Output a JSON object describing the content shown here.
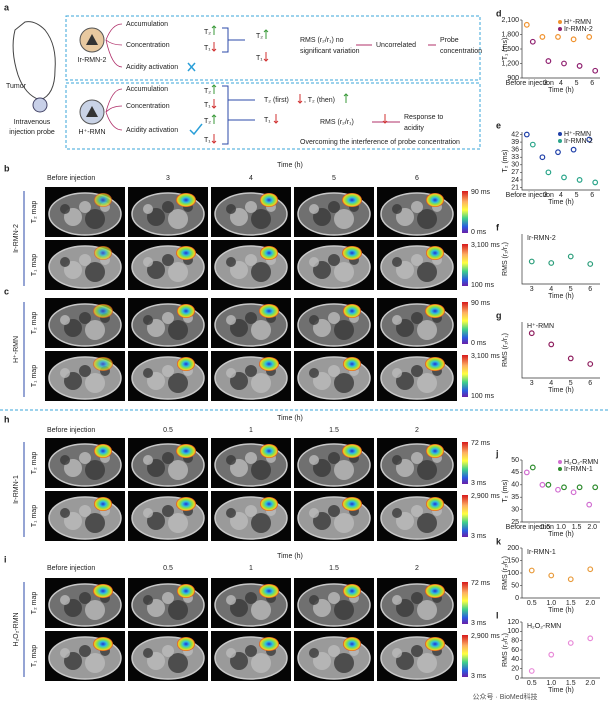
{
  "panel_a": {
    "label": "a",
    "mouse": [
      "Tumor",
      "Intravenous",
      "injection probe"
    ],
    "rows": [
      {
        "probe": "Ir-RMN-2",
        "texts": [
          "Accumulation",
          "Concentration",
          "Acidity activation",
          "T₂",
          "T₁",
          "T₂",
          "T₁",
          "RMS (r₂/r₁) no",
          "significant variation",
          "Uncorrelated",
          "Probe",
          "concentration"
        ]
      },
      {
        "probe": "H⁺-RMN",
        "texts": [
          "Accumulation",
          "Concentration",
          "Acidity activation",
          "T₂",
          "T₁",
          "T₂",
          "T₁",
          "T₂ (first)",
          ", T₂ (then)",
          "T₁",
          "RMS (r₂/r₁)",
          "Response to",
          "acidity",
          "Overcoming the interference of probe concentration"
        ]
      }
    ]
  },
  "image_panels": [
    {
      "label": "b",
      "time_title": "Time (h)",
      "columns": [
        "Before injection",
        "3",
        "4",
        "5",
        "6"
      ],
      "group": "Ir-RMN-2",
      "rows": [
        "T₂ map",
        "T₁ map"
      ],
      "colorbars": [
        [
          "90 ms",
          "0 ms"
        ],
        [
          "3,100 ms",
          "100 ms"
        ]
      ]
    },
    {
      "label": "c",
      "group": "H⁺-RMN",
      "rows": [
        "T₂ map",
        "T₁ map"
      ],
      "colorbars": [
        [
          "90 ms",
          "0 ms"
        ],
        [
          "3,100 ms",
          "100 ms"
        ]
      ]
    },
    {
      "label": "h",
      "time_title": "Time (h)",
      "columns": [
        "Before injection",
        "0.5",
        "1",
        "1.5",
        "2"
      ],
      "group": "Ir-RMN-1",
      "rows": [
        "T₂ map",
        "T₁ map"
      ],
      "colorbars": [
        [
          "72 ms",
          "3 ms"
        ],
        [
          "2,900 ms",
          "3 ms"
        ]
      ]
    },
    {
      "label": "i",
      "time_title": "Time (h)",
      "columns": [
        "Before injection",
        "0.5",
        "1",
        "1.5",
        "2"
      ],
      "group": "H₂O₂-RMN",
      "rows": [
        "T₂ map",
        "T₁ map"
      ],
      "colorbars": [
        [
          "72 ms",
          "3 ms"
        ],
        [
          "2,900 ms",
          "3 ms"
        ]
      ]
    }
  ],
  "chart_data": [
    {
      "panel": "d",
      "type": "dot",
      "xlabel": "Time (h)",
      "ylabel": "T₁ (ms)",
      "categories": [
        "Before injection",
        "3",
        "4",
        "5",
        "6"
      ],
      "series": [
        {
          "name": "H⁺-RMN",
          "color": "#f0922e",
          "values": [
            2000,
            1750,
            1750,
            1700,
            1750
          ]
        },
        {
          "name": "Ir-RMN-2",
          "color": "#8e1e6e",
          "values": [
            1650,
            1250,
            1200,
            1150,
            1050
          ]
        }
      ],
      "ylim": [
        900,
        2100
      ],
      "yticks": [
        900,
        {
          "value": 1200,
          "label": "1,200"
        },
        {
          "value": 1500,
          "label": "1,500"
        },
        {
          "value": 1800,
          "label": "1,800"
        },
        {
          "value": 2100,
          "label": "2,100"
        }
      ]
    },
    {
      "panel": "e",
      "type": "dot",
      "xlabel": "Time (h)",
      "ylabel": "T₂ (ms)",
      "categories": [
        "Before injection",
        "3",
        "4",
        "5",
        "6"
      ],
      "series": [
        {
          "name": "H⁺-RMN",
          "color": "#1f3fa8",
          "values": [
            42,
            33,
            35,
            36,
            40
          ]
        },
        {
          "name": "Ir-RMN-2",
          "color": "#2aa58a",
          "values": [
            38,
            27,
            25,
            24,
            23
          ]
        }
      ],
      "ylim": [
        20,
        43
      ],
      "yticks": [
        21,
        24,
        27,
        30,
        33,
        36,
        39,
        42
      ]
    },
    {
      "panel": "f",
      "type": "dot",
      "title": "Ir-RMN-2",
      "xlabel": "Time (h)",
      "ylabel": "RMS (r₂/r₁)",
      "categories": [
        "3",
        "4",
        "5",
        "6"
      ],
      "color": "#2a9d7a",
      "values": [
        0.45,
        0.42,
        0.55,
        0.4
      ],
      "ylim": [
        0,
        1
      ]
    },
    {
      "panel": "g",
      "type": "dot",
      "title": "H⁺-RMN",
      "xlabel": "Time (h)",
      "ylabel": "RMS (r₂/r₁)",
      "categories": [
        "3",
        "4",
        "5",
        "6"
      ],
      "color": "#8e1e5e",
      "values": [
        0.8,
        0.6,
        0.35,
        0.25
      ],
      "ylim": [
        0,
        1
      ]
    },
    {
      "panel": "j",
      "type": "dot",
      "xlabel": "Time (h)",
      "ylabel": "T₂ (ms)",
      "categories": [
        "Before injection",
        "0.5",
        "1.0",
        "1.5",
        "2.0"
      ],
      "series": [
        {
          "name": "H₂O₂-RMN",
          "color": "#d16ed1",
          "values": [
            45,
            40,
            38,
            37,
            32
          ]
        },
        {
          "name": "Ir-RMN-1",
          "color": "#2e8b2e",
          "values": [
            47,
            40,
            39,
            39,
            39
          ]
        }
      ],
      "ylim": [
        25,
        50
      ],
      "yticks": [
        25,
        30,
        35,
        40,
        45,
        50
      ]
    },
    {
      "panel": "k",
      "type": "dot",
      "title": "Ir-RMN-1",
      "xlabel": "Time (h)",
      "ylabel": "RMS (r₂/r₁)",
      "categories": [
        "0.5",
        "1.0",
        "1.5",
        "2.0"
      ],
      "color": "#e89a3a",
      "values": [
        110,
        90,
        75,
        115
      ],
      "ylim": [
        0,
        200
      ],
      "yticks": [
        0,
        50,
        100,
        150,
        200
      ]
    },
    {
      "panel": "l",
      "type": "dot",
      "title": "H₂O₂-RMN",
      "xlabel": "Time (h)",
      "ylabel": "RMS (r₂/r₁)",
      "categories": [
        "0.5",
        "1.0",
        "1.5",
        "2.0"
      ],
      "color": "#e88ad8",
      "values": [
        15,
        50,
        75,
        85
      ],
      "ylim": [
        0,
        120
      ],
      "yticks": [
        0,
        20,
        40,
        60,
        80,
        100,
        120
      ]
    }
  ],
  "watermark": "公众号 · BioMed科技"
}
